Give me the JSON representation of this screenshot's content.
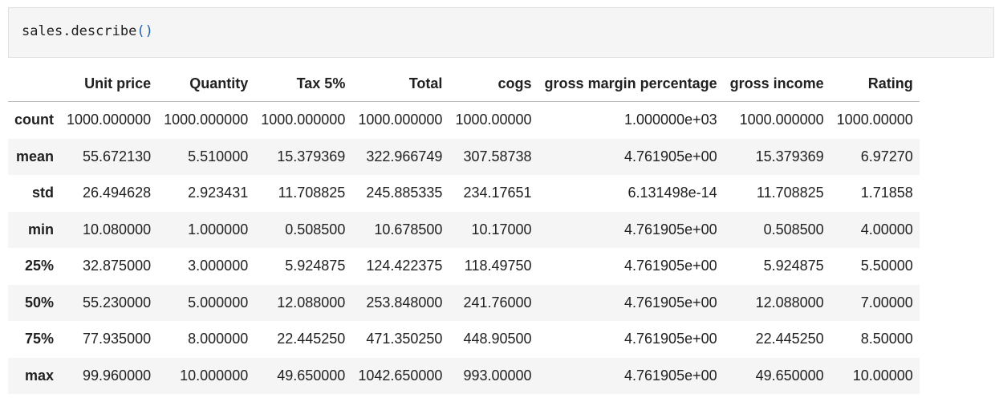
{
  "code_cell": {
    "object": "sales",
    "dot": ".",
    "method": "describe",
    "parens": "()"
  },
  "table": {
    "columns": [
      "",
      "Unit price",
      "Quantity",
      "Tax 5%",
      "Total",
      "cogs",
      "gross margin percentage",
      "gross income",
      "Rating"
    ],
    "rows": [
      {
        "label": "count",
        "values": [
          "1000.000000",
          "1000.000000",
          "1000.000000",
          "1000.000000",
          "1000.00000",
          "1.000000e+03",
          "1000.000000",
          "1000.00000"
        ]
      },
      {
        "label": "mean",
        "values": [
          "55.672130",
          "5.510000",
          "15.379369",
          "322.966749",
          "307.58738",
          "4.761905e+00",
          "15.379369",
          "6.97270"
        ]
      },
      {
        "label": "std",
        "values": [
          "26.494628",
          "2.923431",
          "11.708825",
          "245.885335",
          "234.17651",
          "6.131498e-14",
          "11.708825",
          "1.71858"
        ]
      },
      {
        "label": "min",
        "values": [
          "10.080000",
          "1.000000",
          "0.508500",
          "10.678500",
          "10.17000",
          "4.761905e+00",
          "0.508500",
          "4.00000"
        ]
      },
      {
        "label": "25%",
        "values": [
          "32.875000",
          "3.000000",
          "5.924875",
          "124.422375",
          "118.49750",
          "4.761905e+00",
          "5.924875",
          "5.50000"
        ]
      },
      {
        "label": "50%",
        "values": [
          "55.230000",
          "5.000000",
          "12.088000",
          "253.848000",
          "241.76000",
          "4.761905e+00",
          "12.088000",
          "7.00000"
        ]
      },
      {
        "label": "75%",
        "values": [
          "77.935000",
          "8.000000",
          "22.445250",
          "471.350250",
          "448.90500",
          "4.761905e+00",
          "22.445250",
          "8.50000"
        ]
      },
      {
        "label": "max",
        "values": [
          "99.960000",
          "10.000000",
          "49.650000",
          "1042.650000",
          "993.00000",
          "4.761905e+00",
          "49.650000",
          "10.00000"
        ]
      }
    ]
  }
}
